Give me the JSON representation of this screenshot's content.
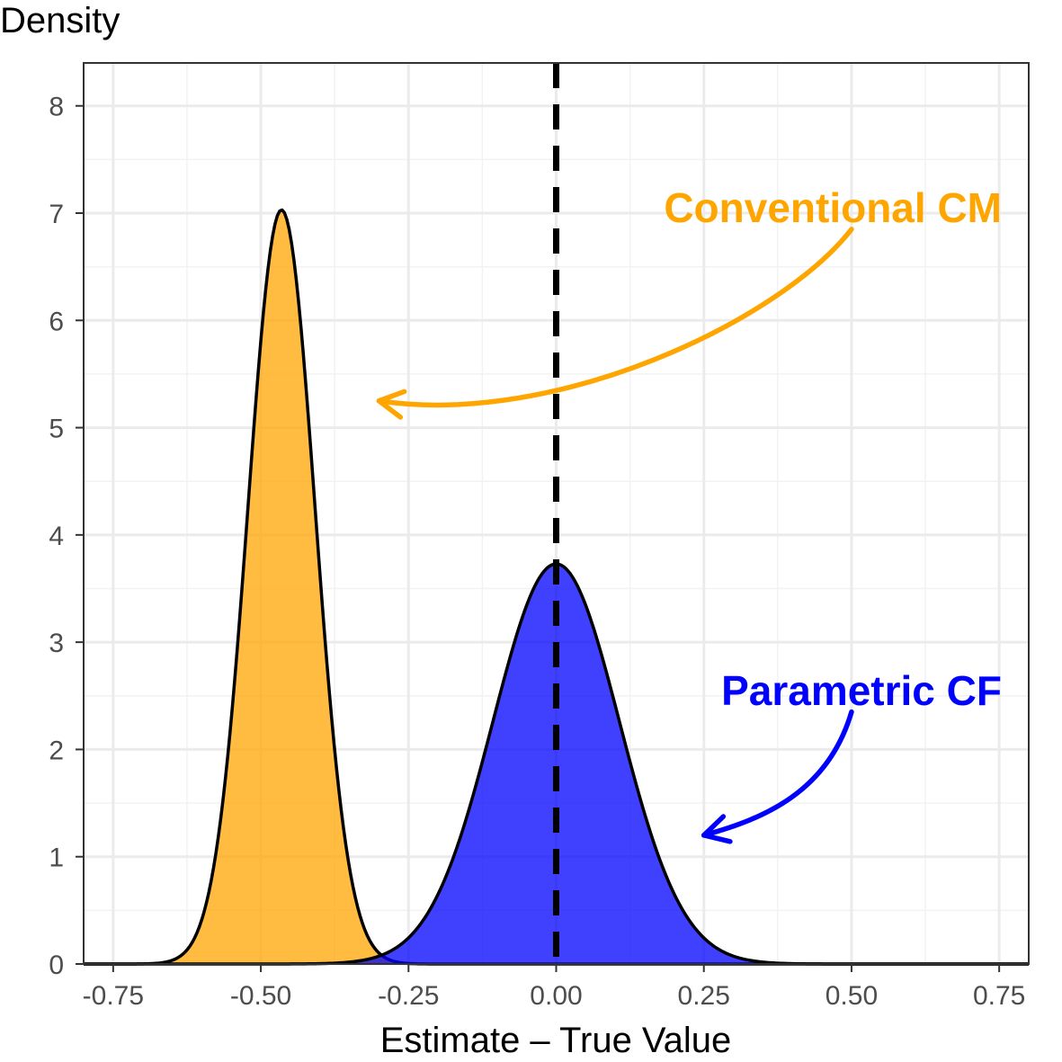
{
  "chart_data": {
    "type": "area",
    "xlabel": "Estimate – True Value",
    "ylabel": "Density",
    "xlim": [
      -0.8,
      0.8
    ],
    "ylim": [
      0,
      8.4
    ],
    "x_ticks": [
      -0.75,
      -0.5,
      -0.25,
      0,
      0.25,
      0.5,
      0.75
    ],
    "x_tick_labels": [
      "-0.75",
      "-0.50",
      "-0.25",
      "0.00",
      "0.25",
      "0.50",
      "0.75"
    ],
    "y_ticks": [
      0,
      1,
      2,
      3,
      4,
      5,
      6,
      7,
      8
    ],
    "y_tick_labels": [
      "0",
      "1",
      "2",
      "3",
      "4",
      "5",
      "6",
      "7",
      "8"
    ],
    "grid": true,
    "reference_line": {
      "x": 0,
      "style": "dashed",
      "color": "#000000"
    },
    "series": [
      {
        "name": "Conventional CM",
        "color": "#FFA500",
        "distribution": "normal",
        "mean": -0.465,
        "sd": 0.0567,
        "peak_density": 7.03
      },
      {
        "name": "Parametric CF",
        "color": "#0000FF",
        "distribution": "normal",
        "mean": 0.0,
        "sd": 0.107,
        "peak_density": 3.73
      }
    ],
    "annotations": [
      {
        "text": "Conventional CM",
        "color": "#FFA500",
        "x": 0.3,
        "y": 7.05,
        "arrow_from": [
          0.5,
          6.85
        ],
        "arrow_to": [
          -0.3,
          5.25
        ]
      },
      {
        "text": "Parametric CF",
        "color": "#0000FF",
        "x": 0.3,
        "y": 2.55,
        "arrow_from": [
          0.5,
          2.35
        ],
        "arrow_to": [
          0.25,
          1.2
        ]
      }
    ]
  }
}
